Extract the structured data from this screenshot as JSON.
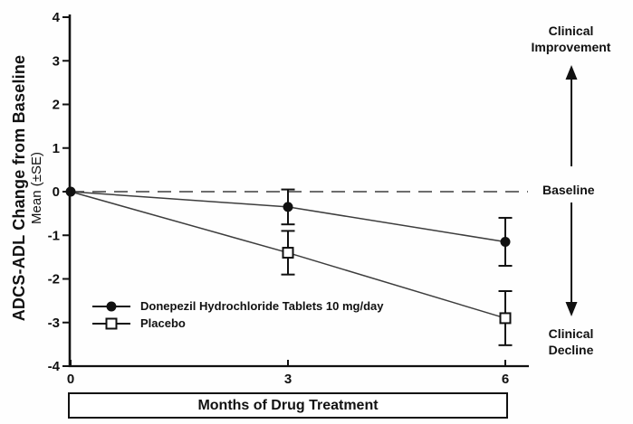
{
  "chart_data": {
    "type": "line",
    "title": "",
    "xlabel": "Months of Drug Treatment",
    "ylabel_main": "ADCS-ADL Change from Baseline",
    "ylabel_sub": "Mean (±SE)",
    "x": [
      0,
      3,
      6
    ],
    "x_ticks": [
      "0",
      "3",
      "6"
    ],
    "y_ticks": [
      "4",
      "3",
      "2",
      "1",
      "0",
      "-1",
      "-2",
      "-3",
      "-4"
    ],
    "y_tick_values": [
      4,
      3,
      2,
      1,
      0,
      -1,
      -2,
      -3,
      -4
    ],
    "ylim": [
      -4,
      4
    ],
    "xlim": [
      0,
      6
    ],
    "grid": false,
    "legend_position": "lower-left",
    "series": [
      {
        "name": "Donepezil Hydrochloride Tablets 10 mg/day",
        "marker": "filled-circle",
        "values": [
          0,
          -0.35,
          -1.15
        ],
        "se": [
          0,
          0.4,
          0.55
        ]
      },
      {
        "name": "Placebo",
        "marker": "open-square",
        "values": [
          0,
          -1.4,
          -2.9
        ],
        "se": [
          0,
          0.5,
          0.62
        ]
      }
    ],
    "baseline": {
      "y": 0,
      "style": "dashed",
      "label": "Baseline"
    },
    "annotations": {
      "improvement_label": "Clinical Improvement",
      "decline_label": "Clinical Decline"
    },
    "colors": {
      "ink": "#111111",
      "line": "#3d3d3d",
      "background": "#fefefe"
    }
  }
}
